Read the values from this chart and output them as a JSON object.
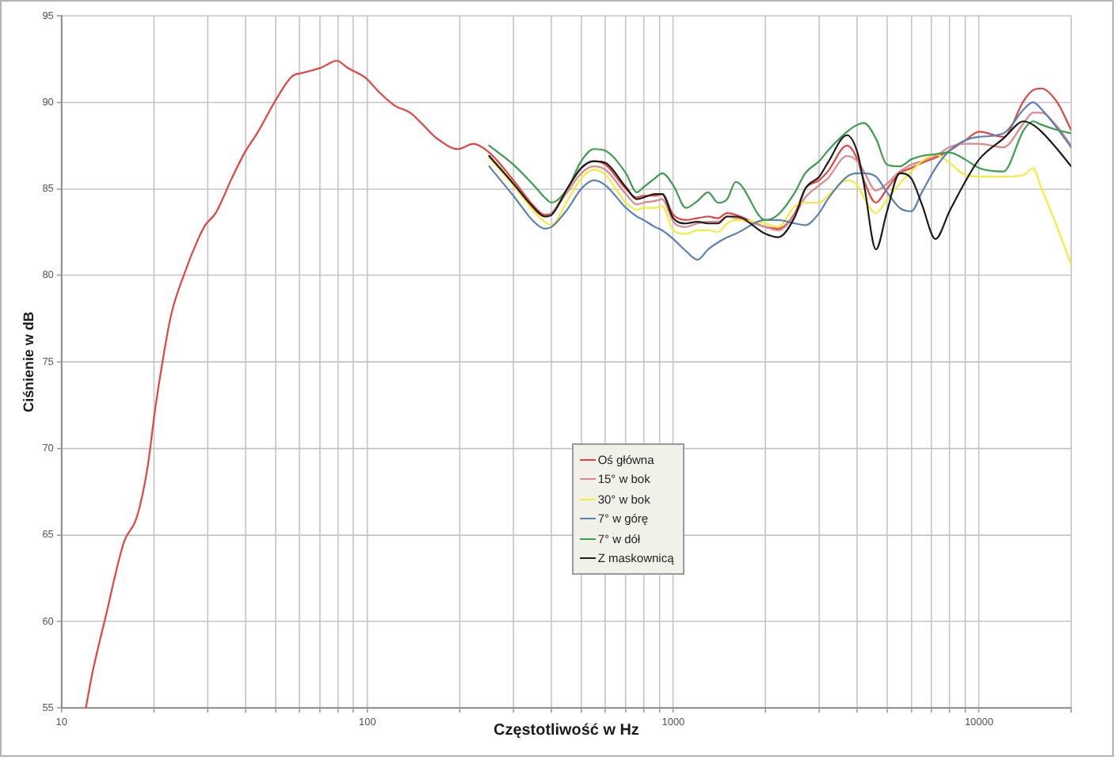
{
  "chart_data": {
    "type": "line",
    "xlabel": "Częstotliwość w Hz",
    "ylabel": "Ciśnienie w dB",
    "log": "x",
    "grid": true,
    "legend": "bottom",
    "xlim": [
      10,
      20000
    ],
    "ylim": [
      55,
      95
    ],
    "xticks": [
      10,
      {
        "value": 20,
        "label": null
      },
      {
        "value": 30,
        "label": null
      },
      {
        "value": 40,
        "label": null
      },
      {
        "value": 50,
        "label": null
      },
      {
        "value": 60,
        "label": null
      },
      {
        "value": 70,
        "label": null
      },
      {
        "value": 80,
        "label": null
      },
      {
        "value": 90,
        "label": null
      },
      100,
      {
        "value": 200,
        "label": null
      },
      {
        "value": 300,
        "label": null
      },
      {
        "value": 400,
        "label": null
      },
      {
        "value": 500,
        "label": null
      },
      {
        "value": 600,
        "label": null
      },
      {
        "value": 700,
        "label": null
      },
      {
        "value": 800,
        "label": null
      },
      {
        "value": 900,
        "label": null
      },
      1000,
      {
        "value": 2000,
        "label": null
      },
      {
        "value": 3000,
        "label": null
      },
      {
        "value": 4000,
        "label": null
      },
      {
        "value": 5000,
        "label": null
      },
      {
        "value": 6000,
        "label": null
      },
      {
        "value": 7000,
        "label": null
      },
      {
        "value": 8000,
        "label": null
      },
      {
        "value": 9000,
        "label": null
      },
      10000,
      {
        "value": 20000,
        "label": null
      }
    ],
    "yticks": [
      55,
      60,
      65,
      70,
      75,
      80,
      85,
      90,
      95
    ],
    "x": [
      250,
      300,
      350,
      380,
      400,
      450,
      500,
      550,
      600,
      700,
      760,
      800,
      870,
      920,
      1000,
      1100,
      1200,
      1300,
      1400,
      1500,
      1600,
      2000,
      2200,
      2500,
      2700,
      3000,
      3200,
      3700,
      4000,
      4200,
      4600,
      5000,
      5500,
      6000,
      6500,
      7200,
      8000,
      9000,
      10000,
      12000,
      14000,
      15000,
      16000,
      18000,
      20000
    ],
    "series": [
      {
        "name": "Oś główna",
        "color": "#e8423c",
        "x": [
          12,
          12.6,
          13.9,
          16,
          17.6,
          19.1,
          20.2,
          21.1,
          22.8,
          25.2,
          27.8,
          29.5,
          31.9,
          36,
          39.7,
          43.9,
          50.4,
          56.7,
          61.4,
          70.5,
          79.4,
          86,
          98.8,
          109,
          123,
          138,
          150,
          169,
          198,
          222,
          250,
          300,
          350,
          380,
          400,
          450,
          500,
          550,
          600,
          700,
          760,
          800,
          870,
          920,
          1000,
          1100,
          1200,
          1300,
          1400,
          1500,
          1600,
          2000,
          2200,
          2500,
          2700,
          3000,
          3200,
          3700,
          4000,
          4200,
          4600,
          5000,
          5500,
          6000,
          6500,
          7200,
          8000,
          9000,
          10000,
          12000,
          14000,
          15000,
          16000,
          18000,
          20000
        ],
        "values": [
          55,
          57,
          60.2,
          64.6,
          66,
          68.9,
          72.2,
          74.4,
          77.7,
          80.1,
          82,
          82.9,
          83.6,
          85.6,
          87.1,
          88.3,
          90.2,
          91.5,
          91.7,
          92,
          92.4,
          92,
          91.4,
          90.6,
          89.8,
          89.4,
          88.8,
          87.9,
          87.3,
          87.6,
          87.1,
          85.5,
          84,
          83.5,
          83.6,
          85,
          86.2,
          86.6,
          86.4,
          85,
          84.5,
          84.6,
          84.6,
          84.7,
          83.5,
          83.2,
          83.3,
          83.4,
          83.3,
          83.6,
          83.5,
          82.8,
          82.7,
          83.6,
          85,
          85.5,
          86,
          87.5,
          86.7,
          85.5,
          84.2,
          85,
          85.9,
          86.2,
          86.5,
          86.8,
          87.2,
          87.8,
          88.3,
          88,
          90.1,
          90.7,
          90.8,
          90,
          88.4
        ]
      },
      {
        "name": "15° w bok",
        "color": "#e0868a",
        "values": [
          86.9,
          85.3,
          83.8,
          83.4,
          83.6,
          84.8,
          85.9,
          86.3,
          86.1,
          84.7,
          84.1,
          84.2,
          84.3,
          84.4,
          83.1,
          82.8,
          83,
          83.1,
          83.1,
          83.4,
          83.3,
          82.8,
          82.6,
          83.5,
          84.5,
          85.2,
          85.6,
          86.9,
          86.6,
          86,
          84.9,
          85.3,
          86,
          86.4,
          86.6,
          86.9,
          87.4,
          87.6,
          87.6,
          87.4,
          88.8,
          89.4,
          89.4,
          88.6,
          87.5
        ]
      },
      {
        "name": "30° w bok",
        "color": "#f2ee3a",
        "values": [
          86.8,
          85.2,
          83.7,
          83.1,
          82.9,
          84.3,
          85.6,
          86.1,
          85.8,
          84.2,
          83.8,
          83.9,
          83.9,
          84,
          82.6,
          82.4,
          82.6,
          82.6,
          82.5,
          83,
          83.2,
          83,
          82.8,
          84,
          84.2,
          84.2,
          84.6,
          85.5,
          85.2,
          84.5,
          83.6,
          84.4,
          85.3,
          86,
          86.6,
          87,
          86.5,
          85.8,
          85.7,
          85.7,
          85.8,
          86.2,
          85,
          82.8,
          80.6
        ]
      },
      {
        "name": "7° w górę",
        "color": "#5a80b8",
        "values": [
          86.3,
          84.6,
          83.1,
          82.7,
          82.8,
          83.8,
          85,
          85.5,
          85.2,
          83.9,
          83.4,
          83.2,
          82.8,
          82.6,
          82.1,
          81.4,
          80.9,
          81.5,
          81.9,
          82.2,
          82.4,
          83.2,
          83.2,
          83,
          82.9,
          83.6,
          84.4,
          85.7,
          85.9,
          85.9,
          85.7,
          84.8,
          83.9,
          83.7,
          84.8,
          86.2,
          87.2,
          87.8,
          88,
          88.2,
          89.6,
          90,
          89.6,
          88.5,
          87.4
        ]
      },
      {
        "name": "7° w dół",
        "color": "#3a9e4c",
        "values": [
          87.5,
          86.4,
          85.2,
          84.5,
          84.2,
          85,
          86.6,
          87.3,
          87.2,
          85.9,
          84.8,
          85.1,
          85.6,
          85.9,
          85.2,
          83.9,
          84.3,
          84.8,
          84.2,
          84.4,
          85.4,
          83.2,
          83.5,
          84.8,
          85.9,
          86.6,
          87.2,
          88.3,
          88.7,
          88.8,
          87.9,
          86.4,
          86.3,
          86.7,
          86.9,
          87,
          87.1,
          86.7,
          86.2,
          86,
          88.4,
          88.9,
          88.7,
          88.4,
          88.2
        ]
      },
      {
        "name": "Z maskownicą",
        "color": "#1c1c1c",
        "values": [
          86.9,
          85.3,
          83.9,
          83.4,
          83.5,
          85,
          86.2,
          86.6,
          86.5,
          85.1,
          84.4,
          84.5,
          84.7,
          84.7,
          83.3,
          83,
          83.1,
          83,
          83,
          83.4,
          83.4,
          82.4,
          82.2,
          83.4,
          85,
          85.7,
          86.5,
          88.1,
          87.1,
          85.3,
          81.5,
          83.7,
          85.9,
          85.6,
          84.1,
          82.1,
          83.7,
          85.4,
          86.7,
          87.9,
          88.9,
          88.7,
          88.3,
          87.3,
          86.3
        ]
      }
    ]
  }
}
